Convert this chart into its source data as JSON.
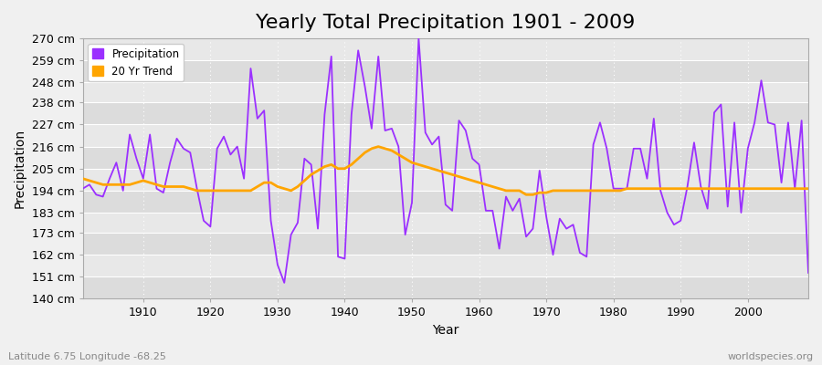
{
  "title": "Yearly Total Precipitation 1901 - 2009",
  "xlabel": "Year",
  "ylabel": "Precipitation",
  "subtitle": "Latitude 6.75 Longitude -68.25",
  "watermark": "worldspecies.org",
  "years": [
    1901,
    1902,
    1903,
    1904,
    1905,
    1906,
    1907,
    1908,
    1909,
    1910,
    1911,
    1912,
    1913,
    1914,
    1915,
    1916,
    1917,
    1918,
    1919,
    1920,
    1921,
    1922,
    1923,
    1924,
    1925,
    1926,
    1927,
    1928,
    1929,
    1930,
    1931,
    1932,
    1933,
    1934,
    1935,
    1936,
    1937,
    1938,
    1939,
    1940,
    1941,
    1942,
    1943,
    1944,
    1945,
    1946,
    1947,
    1948,
    1949,
    1950,
    1951,
    1952,
    1953,
    1954,
    1955,
    1956,
    1957,
    1958,
    1959,
    1960,
    1961,
    1962,
    1963,
    1964,
    1965,
    1966,
    1967,
    1968,
    1969,
    1970,
    1971,
    1972,
    1973,
    1974,
    1975,
    1976,
    1977,
    1978,
    1979,
    1980,
    1981,
    1982,
    1983,
    1984,
    1985,
    1986,
    1987,
    1988,
    1989,
    1990,
    1991,
    1992,
    1993,
    1994,
    1995,
    1996,
    1997,
    1998,
    1999,
    2000,
    2001,
    2002,
    2003,
    2004,
    2005,
    2006,
    2007,
    2008,
    2009
  ],
  "precip": [
    195,
    197,
    192,
    191,
    200,
    208,
    194,
    222,
    210,
    200,
    222,
    195,
    193,
    208,
    220,
    215,
    213,
    195,
    179,
    176,
    215,
    221,
    212,
    216,
    200,
    255,
    230,
    234,
    179,
    157,
    148,
    172,
    178,
    210,
    207,
    175,
    232,
    261,
    161,
    160,
    232,
    264,
    246,
    225,
    261,
    224,
    225,
    216,
    172,
    188,
    270,
    223,
    217,
    221,
    187,
    184,
    229,
    224,
    210,
    207,
    184,
    184,
    165,
    191,
    184,
    190,
    171,
    175,
    204,
    181,
    162,
    180,
    175,
    177,
    163,
    161,
    217,
    228,
    215,
    195,
    195,
    195,
    215,
    215,
    200,
    230,
    194,
    183,
    177,
    179,
    196,
    218,
    196,
    185,
    233,
    237,
    186,
    228,
    183,
    215,
    228,
    249,
    228,
    227,
    198,
    228,
    195,
    229,
    153
  ],
  "trend_years": [
    1901,
    1902,
    1903,
    1904,
    1905,
    1906,
    1907,
    1908,
    1909,
    1910,
    1911,
    1912,
    1913,
    1914,
    1915,
    1916,
    1917,
    1918,
    1919,
    1920,
    1921,
    1922,
    1923,
    1924,
    1925,
    1926,
    1927,
    1928,
    1929,
    1930,
    1931,
    1932,
    1933,
    1934,
    1935,
    1936,
    1937,
    1938,
    1939,
    1940,
    1941,
    1942,
    1943,
    1944,
    1945,
    1946,
    1947,
    1948,
    1949,
    1950,
    1951,
    1952,
    1953,
    1954,
    1955,
    1956,
    1957,
    1958,
    1959,
    1960,
    1961,
    1962,
    1963,
    1964,
    1965,
    1966,
    1967,
    1968,
    1969,
    1970,
    1971,
    1972,
    1973,
    1974,
    1975,
    1976,
    1977,
    1978,
    1979,
    1980,
    1981,
    1982,
    1983,
    1984,
    1985,
    1986,
    1987,
    1988,
    1989,
    1990,
    1991,
    1992,
    1993,
    1994,
    1995,
    1996,
    1997,
    1998,
    1999,
    2000,
    2001,
    2002,
    2003,
    2004,
    2005,
    2006,
    2007,
    2008,
    2009
  ],
  "trend": [
    200,
    199,
    198,
    197,
    197,
    197,
    197,
    197,
    198,
    199,
    198,
    197,
    196,
    196,
    196,
    196,
    195,
    194,
    194,
    194,
    194,
    194,
    194,
    194,
    194,
    194,
    196,
    198,
    198,
    196,
    195,
    194,
    196,
    199,
    202,
    204,
    206,
    207,
    205,
    205,
    207,
    210,
    213,
    215,
    216,
    215,
    214,
    212,
    210,
    208,
    207,
    206,
    205,
    204,
    203,
    202,
    201,
    200,
    199,
    198,
    197,
    196,
    195,
    194,
    194,
    194,
    192,
    192,
    193,
    193,
    194,
    194,
    194,
    194,
    194,
    194,
    194,
    194,
    194,
    194,
    194,
    195,
    195,
    195,
    195,
    195,
    195,
    195,
    195,
    195,
    195,
    195,
    195,
    195,
    195,
    195,
    195,
    195,
    195,
    195,
    195,
    195,
    195,
    195,
    195,
    195,
    195,
    195,
    195
  ],
  "precip_color": "#9B30FF",
  "trend_color": "#FFA500",
  "bg_color": "#F0F0F0",
  "plot_bg_color": "#E8E8E8",
  "band_color_light": "#E8E8E8",
  "band_color_dark": "#DCDCDC",
  "grid_color": "#FFFFFF",
  "ylim": [
    140,
    270
  ],
  "ytick_values": [
    140,
    151,
    162,
    173,
    183,
    194,
    205,
    216,
    227,
    238,
    248,
    259,
    270
  ],
  "ytick_labels": [
    "140 cm",
    "151 cm",
    "162 cm",
    "173 cm",
    "183 cm",
    "194 cm",
    "205 cm",
    "216 cm",
    "227 cm",
    "238 cm",
    "248 cm",
    "259 cm",
    "270 cm"
  ],
  "xtick_values": [
    1910,
    1920,
    1930,
    1940,
    1950,
    1960,
    1970,
    1980,
    1990,
    2000
  ],
  "title_fontsize": 16,
  "axis_fontsize": 10,
  "tick_fontsize": 9
}
